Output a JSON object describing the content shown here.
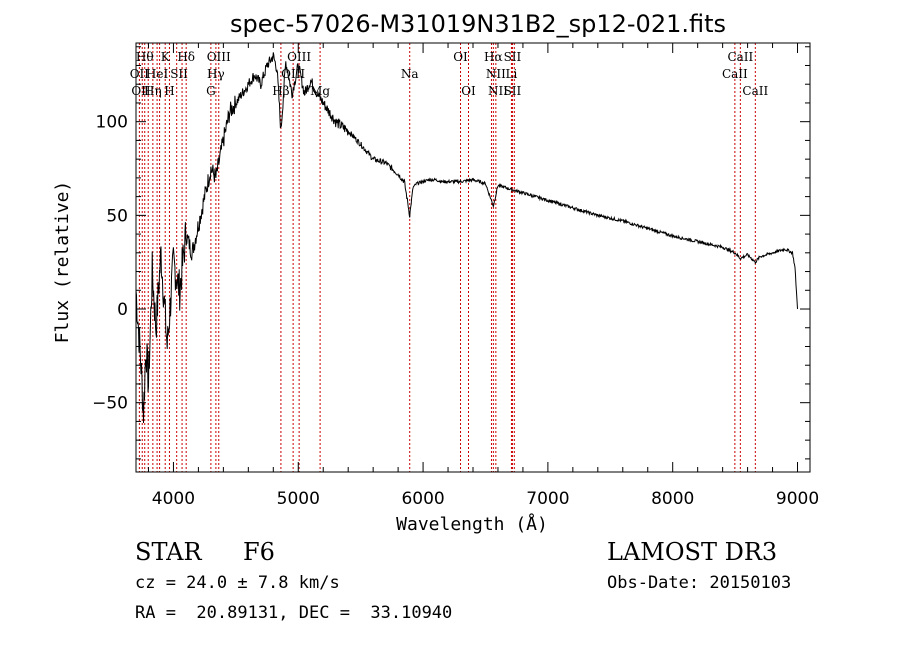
{
  "chart_data": {
    "type": "line",
    "title": "spec-57026-M31019N31B2_sp12-021.fits",
    "xlabel": "Wavelength (Å)",
    "ylabel": "Flux (relative)",
    "xlim": [
      3700,
      9100
    ],
    "ylim": [
      -87,
      142
    ],
    "xticks": [
      4000,
      5000,
      6000,
      7000,
      8000,
      9000
    ],
    "xtick_labels": [
      "4000",
      "5000",
      "6000",
      "7000",
      "8000",
      "9000"
    ],
    "yticks": [
      -50,
      0,
      50,
      100
    ],
    "ytick_labels": [
      "−50",
      "0",
      "50",
      "100"
    ],
    "series": [
      {
        "name": "spectrum",
        "x": [
          3700,
          3740,
          3760,
          3780,
          3800,
          3830,
          3860,
          3900,
          3950,
          4000,
          4050,
          4100,
          4150,
          4200,
          4250,
          4300,
          4340,
          4400,
          4450,
          4500,
          4550,
          4600,
          4650,
          4700,
          4750,
          4800,
          4830,
          4861,
          4900,
          4950,
          5000,
          5050,
          5100,
          5150,
          5200,
          5250,
          5300,
          5400,
          5500,
          5600,
          5700,
          5800,
          5850,
          5893,
          5920,
          5950,
          6000,
          6050,
          6100,
          6150,
          6200,
          6300,
          6400,
          6500,
          6563,
          6600,
          6700,
          6800,
          7000,
          7200,
          7400,
          7600,
          7800,
          8000,
          8200,
          8400,
          8500,
          8542,
          8600,
          8662,
          8700,
          8800,
          8900,
          8960,
          8980,
          9000
        ],
        "y": [
          10,
          -30,
          -55,
          -20,
          -40,
          20,
          -10,
          30,
          -20,
          25,
          10,
          40,
          30,
          45,
          60,
          75,
          70,
          90,
          105,
          110,
          115,
          120,
          125,
          120,
          130,
          135,
          128,
          95,
          132,
          115,
          130,
          115,
          122,
          115,
          110,
          105,
          100,
          95,
          88,
          80,
          78,
          72,
          68,
          50,
          65,
          67,
          68,
          69,
          69,
          68,
          68,
          68,
          69,
          67,
          55,
          66,
          64,
          62,
          58,
          54,
          50,
          47,
          43,
          39,
          36,
          33,
          30,
          27,
          29,
          25,
          28,
          30,
          32,
          30,
          22,
          0
        ]
      }
    ],
    "lines": [
      {
        "wl": 3727,
        "label": "OII"
      },
      {
        "wl": 3750,
        "label": "OII"
      },
      {
        "wl": 3770,
        "label": "Hθ"
      },
      {
        "wl": 3798,
        "label": "Hη"
      },
      {
        "wl": 3835,
        "label": "Hη"
      },
      {
        "wl": 3869,
        "label": "HeI"
      },
      {
        "wl": 3889,
        "label": "HeI"
      },
      {
        "wl": 3934,
        "label": "K"
      },
      {
        "wl": 3968,
        "label": "H"
      },
      {
        "wl": 4026,
        "label": "SII"
      },
      {
        "wl": 4069,
        "label": "SII"
      },
      {
        "wl": 4102,
        "label": "Hδ"
      },
      {
        "wl": 4300,
        "label": "G"
      },
      {
        "wl": 4340,
        "label": "Hγ"
      },
      {
        "wl": 4363,
        "label": "OIII"
      },
      {
        "wl": 4861,
        "label": "Hβ"
      },
      {
        "wl": 4959,
        "label": "OIII"
      },
      {
        "wl": 5007,
        "label": "OIII"
      },
      {
        "wl": 5175,
        "label": "Mg"
      },
      {
        "wl": 5893,
        "label": "Na"
      },
      {
        "wl": 6300,
        "label": "OI"
      },
      {
        "wl": 6364,
        "label": "OI"
      },
      {
        "wl": 6548,
        "label": "NII"
      },
      {
        "wl": 6563,
        "label": "Hα"
      },
      {
        "wl": 6583,
        "label": "NII"
      },
      {
        "wl": 6708,
        "label": "Li"
      },
      {
        "wl": 6716,
        "label": "SII"
      },
      {
        "wl": 6731,
        "label": "SII"
      },
      {
        "wl": 8498,
        "label": "CaII"
      },
      {
        "wl": 8542,
        "label": "CaII"
      },
      {
        "wl": 8662,
        "label": "CaII"
      }
    ],
    "line_labels": [
      {
        "text": "Hθ",
        "wl": 3770,
        "row": 0
      },
      {
        "text": "OII",
        "wl": 3727,
        "row": 1
      },
      {
        "text": "OII",
        "wl": 3740,
        "row": 2
      },
      {
        "text": "HeI",
        "wl": 3869,
        "row": 1
      },
      {
        "text": "Hη",
        "wl": 3835,
        "row": 2
      },
      {
        "text": "K",
        "wl": 3934,
        "row": 0
      },
      {
        "text": "Hδ",
        "wl": 4102,
        "row": 0
      },
      {
        "text": "SII",
        "wl": 4045,
        "row": 1
      },
      {
        "text": "H",
        "wl": 3968,
        "row": 2
      },
      {
        "text": "OIII",
        "wl": 4363,
        "row": 0
      },
      {
        "text": "Hγ",
        "wl": 4340,
        "row": 1
      },
      {
        "text": "G",
        "wl": 4300,
        "row": 2
      },
      {
        "text": "OIII",
        "wl": 5007,
        "row": 0
      },
      {
        "text": "OIII",
        "wl": 4959,
        "row": 1
      },
      {
        "text": "Hβ",
        "wl": 4861,
        "row": 2
      },
      {
        "text": "Mg",
        "wl": 5175,
        "row": 2
      },
      {
        "text": "Na",
        "wl": 5893,
        "row": 1
      },
      {
        "text": "OI",
        "wl": 6300,
        "row": 0
      },
      {
        "text": "OI",
        "wl": 6364,
        "row": 2
      },
      {
        "text": "Hα",
        "wl": 6563,
        "row": 0
      },
      {
        "text": "SII",
        "wl": 6716,
        "row": 0
      },
      {
        "text": "NII",
        "wl": 6583,
        "row": 1
      },
      {
        "text": "Li",
        "wl": 6708,
        "row": 1
      },
      {
        "text": "NII",
        "wl": 6600,
        "row": 2
      },
      {
        "text": "SII",
        "wl": 6716,
        "row": 2
      },
      {
        "text": "CaII",
        "wl": 8542,
        "row": 0
      },
      {
        "text": "CaII",
        "wl": 8498,
        "row": 1
      },
      {
        "text": "CaII",
        "wl": 8662,
        "row": 2
      }
    ]
  },
  "info": {
    "object_class": "STAR",
    "subclass": "F6",
    "survey": "LAMOST DR3",
    "cz": "cz = 24.0 ± 7.8 km/s",
    "obs_date": "Obs-Date: 20150103",
    "coords": "RA =  20.89131, DEC =  33.10940"
  },
  "colors": {
    "line_marker": "#cc0000",
    "spectrum": "#000000",
    "axes": "#000000"
  }
}
